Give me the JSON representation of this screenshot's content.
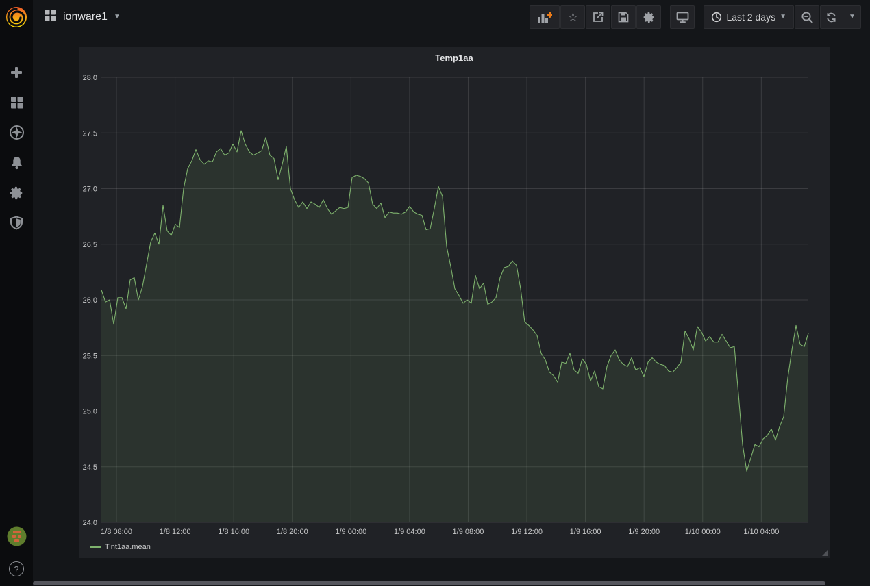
{
  "navbar": {
    "dashboard": {
      "title": "ionware1"
    },
    "actions": [
      "add-panel-icon",
      "star-icon",
      "share-icon",
      "save-icon",
      "settings-gear-icon",
      "tv-kiosk-icon"
    ],
    "time_picker": {
      "icon": "clock-icon",
      "label": "Last 2 days"
    },
    "zoom_out": {
      "icon": "zoom-out-icon"
    },
    "refresh": {
      "icon": "refresh-icon"
    }
  },
  "sidebar": {
    "logo": "grafana-logo",
    "items": [
      "plus-icon",
      "dashboards-icon",
      "explore-compass-icon",
      "alerting-bell-icon",
      "configuration-gear-icon",
      "server-admin-shield-icon"
    ],
    "bottom": [
      "user-avatar",
      "help-icon"
    ]
  },
  "panel": {
    "title": "Temp1aa",
    "legend": [
      {
        "label": "Tint1aa.mean",
        "color": "#7eb26d"
      }
    ]
  },
  "chart_data": {
    "type": "line",
    "title": "Temp1aa",
    "grid": true,
    "legend_position": "bottom-left",
    "ylim": [
      24.0,
      28.0
    ],
    "y_tick_step": 0.5,
    "x_start_hours": 6.97,
    "x_end_hours": 55.21,
    "x_ticks": [
      {
        "h": 8,
        "label": "1/8 08:00"
      },
      {
        "h": 12,
        "label": "1/8 12:00"
      },
      {
        "h": 16,
        "label": "1/8 16:00"
      },
      {
        "h": 20,
        "label": "1/8 20:00"
      },
      {
        "h": 24,
        "label": "1/9 00:00"
      },
      {
        "h": 28,
        "label": "1/9 04:00"
      },
      {
        "h": 32,
        "label": "1/9 08:00"
      },
      {
        "h": 36,
        "label": "1/9 12:00"
      },
      {
        "h": 40,
        "label": "1/9 16:00"
      },
      {
        "h": 44,
        "label": "1/9 20:00"
      },
      {
        "h": 48,
        "label": "1/10 00:00"
      },
      {
        "h": 52,
        "label": "1/10 04:00"
      }
    ],
    "series": [
      {
        "name": "Tint1aa.mean",
        "color": "#7eb26d",
        "fill_opacity": 0.12,
        "values": [
          26.09,
          25.98,
          26.0,
          25.78,
          26.02,
          26.02,
          25.92,
          26.18,
          26.2,
          26.0,
          26.12,
          26.32,
          26.52,
          26.6,
          26.5,
          26.85,
          26.62,
          26.58,
          26.68,
          26.65,
          27.0,
          27.18,
          27.25,
          27.35,
          27.26,
          27.22,
          27.25,
          27.24,
          27.33,
          27.36,
          27.3,
          27.32,
          27.4,
          27.33,
          27.52,
          27.4,
          27.33,
          27.3,
          27.32,
          27.34,
          27.46,
          27.3,
          27.27,
          27.08,
          27.22,
          27.38,
          27.0,
          26.9,
          26.83,
          26.88,
          26.82,
          26.88,
          26.86,
          26.83,
          26.9,
          26.82,
          26.77,
          26.8,
          26.83,
          26.82,
          26.83,
          27.1,
          27.12,
          27.11,
          27.09,
          27.05,
          26.86,
          26.82,
          26.87,
          26.74,
          26.79,
          26.78,
          26.78,
          26.77,
          26.79,
          26.84,
          26.79,
          26.77,
          26.76,
          26.63,
          26.64,
          26.82,
          27.02,
          26.93,
          26.48,
          26.3,
          26.1,
          26.04,
          25.97,
          26.0,
          25.97,
          26.22,
          26.1,
          26.15,
          25.96,
          25.98,
          26.02,
          26.2,
          26.29,
          26.3,
          26.35,
          26.31,
          26.1,
          25.8,
          25.77,
          25.73,
          25.68,
          25.52,
          25.46,
          25.35,
          25.32,
          25.26,
          25.44,
          25.43,
          25.52,
          25.37,
          25.34,
          25.47,
          25.42,
          25.27,
          25.36,
          25.22,
          25.2,
          25.4,
          25.5,
          25.55,
          25.46,
          25.42,
          25.4,
          25.48,
          25.37,
          25.39,
          25.31,
          25.44,
          25.48,
          25.44,
          25.42,
          25.41,
          25.36,
          25.35,
          25.39,
          25.44,
          25.72,
          25.65,
          25.55,
          25.76,
          25.71,
          25.63,
          25.67,
          25.62,
          25.62,
          25.69,
          25.63,
          25.57,
          25.58,
          25.15,
          24.7,
          24.46,
          24.58,
          24.7,
          24.68,
          24.75,
          24.78,
          24.84,
          24.74,
          24.86,
          24.95,
          25.3,
          25.55,
          25.77,
          25.6,
          25.58,
          25.7
        ]
      }
    ]
  },
  "colors": {
    "page_bg": "#141619",
    "panel_bg": "#202226",
    "series_green": "#7eb26d",
    "grid_line": "rgba(255,255,255,0.12)",
    "axis_text": "#c7c8c9",
    "icon_gray": "#9fa2a7",
    "accent_orange": "#eb7b18",
    "scrollbar": "#55565d"
  }
}
